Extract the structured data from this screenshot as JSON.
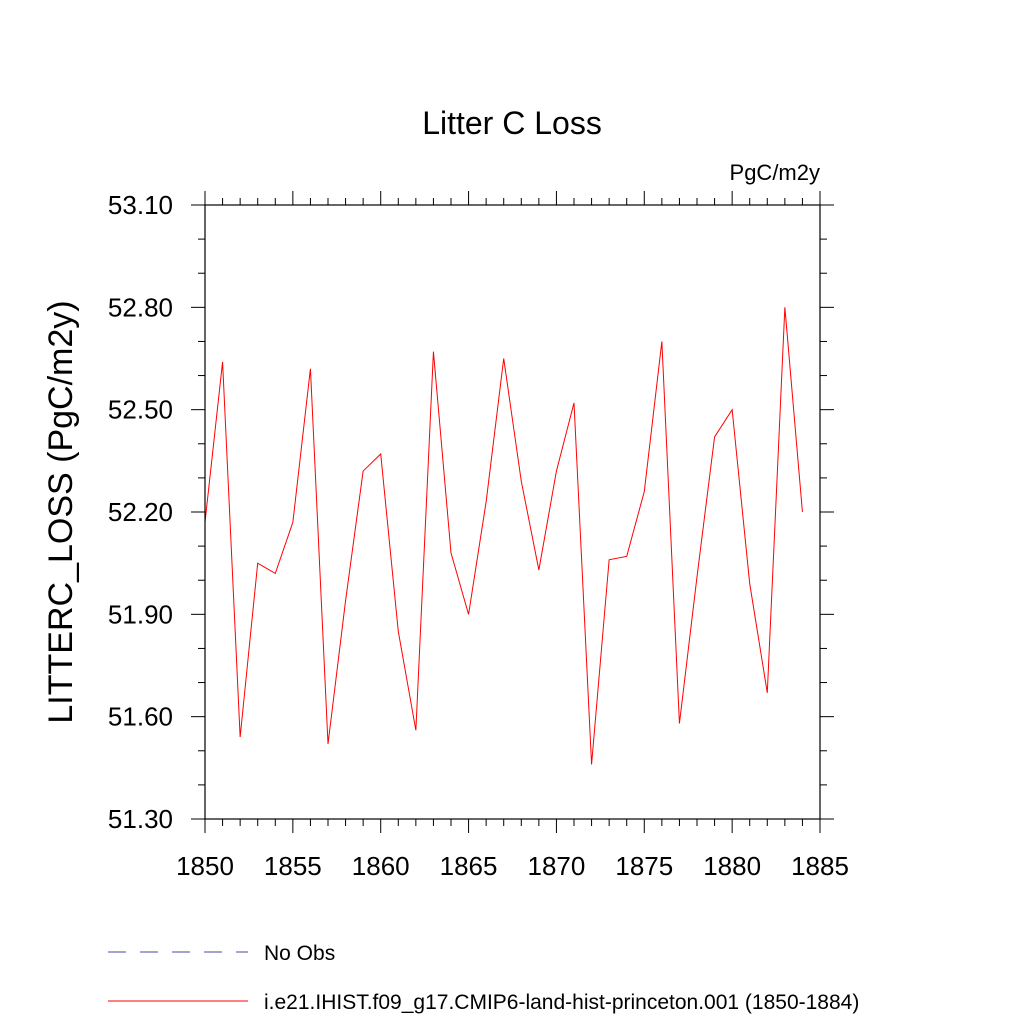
{
  "chart_data": {
    "type": "line",
    "title": "Litter C Loss",
    "units_label": "PgC/m2y",
    "xlabel": "",
    "ylabel": "LITTERC_LOSS  (PgC/m2y)",
    "xlim": [
      1850,
      1885
    ],
    "ylim": [
      51.3,
      53.1
    ],
    "x_ticks": [
      1850,
      1855,
      1860,
      1865,
      1870,
      1875,
      1880,
      1885
    ],
    "x_tick_labels": [
      "1850",
      "1855",
      "1860",
      "1865",
      "1870",
      "1875",
      "1880",
      "1885"
    ],
    "x_minor_step": 1,
    "y_ticks": [
      51.3,
      51.6,
      51.9,
      52.2,
      52.5,
      52.8,
      53.1
    ],
    "y_tick_labels": [
      "51.30",
      "51.60",
      "51.90",
      "52.20",
      "52.50",
      "52.80",
      "53.10"
    ],
    "y_minor_step": 0.1,
    "grid": false,
    "legend_position": "bottom",
    "series": [
      {
        "name": "i.e21.IHIST.f09_g17.CMIP6-land-hist-princeton.001 (1850-1884)",
        "color": "#ff0000",
        "dash": "solid",
        "x": [
          1850,
          1851,
          1852,
          1853,
          1854,
          1855,
          1856,
          1857,
          1858,
          1859,
          1860,
          1861,
          1862,
          1863,
          1864,
          1865,
          1866,
          1867,
          1868,
          1869,
          1870,
          1871,
          1872,
          1873,
          1874,
          1875,
          1876,
          1877,
          1878,
          1879,
          1880,
          1881,
          1882,
          1883,
          1884
        ],
        "values": [
          52.17,
          52.64,
          51.54,
          52.05,
          52.02,
          52.17,
          52.62,
          51.52,
          51.94,
          52.32,
          52.37,
          51.85,
          51.56,
          52.67,
          52.08,
          51.9,
          52.23,
          52.65,
          52.29,
          52.03,
          52.32,
          52.52,
          51.46,
          52.06,
          52.07,
          52.26,
          52.7,
          51.58,
          52.01,
          52.42,
          52.5,
          51.99,
          51.67,
          52.8,
          52.2
        ]
      }
    ],
    "legend_entries": [
      {
        "label": "No Obs",
        "color": "#4a4aa8",
        "dash": "dashed"
      },
      {
        "label": "i.e21.IHIST.f09_g17.CMIP6-land-hist-princeton.001 (1850-1884)",
        "color": "#ff0000",
        "dash": "solid"
      }
    ]
  }
}
